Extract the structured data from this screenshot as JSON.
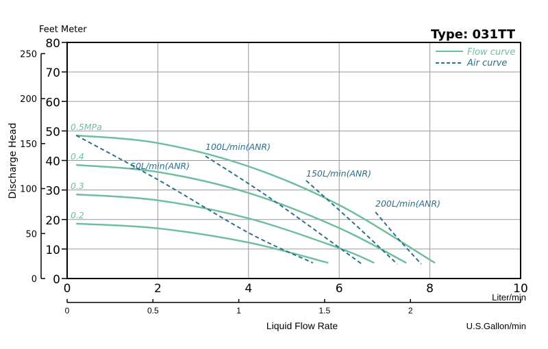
{
  "chart_data": {
    "type": "line",
    "title": "Type: 031TT",
    "ylabel": "Discharge Head",
    "y_units_label": "Feet Meter",
    "xlabel": "Liquid Flow Rate",
    "x_unit_primary": "Liter/min",
    "x_unit_secondary": "U.S.Gallon/min",
    "xlim": [
      0,
      10
    ],
    "ylim": [
      0,
      80
    ],
    "x_ticks": [
      "0",
      "2",
      "4",
      "6",
      "8",
      "10"
    ],
    "y_ticks": [
      "0",
      "10",
      "20",
      "30",
      "40",
      "50",
      "60",
      "70",
      "80"
    ],
    "feet_ticks": [
      "0",
      "50",
      "100",
      "150",
      "200",
      "250"
    ],
    "gallon_ticks": [
      "0",
      "0.5",
      "1",
      "1.5",
      "2"
    ],
    "grid": true,
    "legend": {
      "placement": "top-right",
      "entries": [
        {
          "label": "Flow curve",
          "style": "solid"
        },
        {
          "label": "Air curve",
          "style": "dashed"
        }
      ]
    },
    "colors": {
      "flow": "#6dbf9c",
      "air": "#2a6f8c"
    },
    "flow_series": [
      {
        "name": "0.5MPa",
        "x": [
          0.2,
          2,
          4,
          6,
          8.11
        ],
        "y": [
          48.5,
          45.9,
          38.0,
          24.9,
          5.3
        ]
      },
      {
        "name": "0.4",
        "x": [
          0.2,
          2,
          4,
          6,
          7.48
        ],
        "y": [
          38.5,
          36.1,
          29.0,
          17.1,
          5.3
        ]
      },
      {
        "name": "0.3",
        "x": [
          0.2,
          2,
          4,
          6,
          6.77
        ],
        "y": [
          28.5,
          26.5,
          20.4,
          10.3,
          5.3
        ]
      },
      {
        "name": "0.2",
        "x": [
          0.2,
          2,
          4,
          5.76
        ],
        "y": [
          18.6,
          17.0,
          12.2,
          5.3
        ]
      }
    ],
    "air_series": [
      {
        "name": "50L/min(ANR)",
        "x": [
          0.2,
          2,
          4,
          5.42
        ],
        "y": [
          48.5,
          33.5,
          15.5,
          5.3
        ]
      },
      {
        "name": "100L/min(ANR)",
        "x": [
          3.05,
          4.5,
          6.5
        ],
        "y": [
          41.5,
          27,
          4.9
        ]
      },
      {
        "name": "150L/min(ANR)",
        "x": [
          5.27,
          6.3,
          7.28
        ],
        "y": [
          33.2,
          19,
          4.9
        ]
      },
      {
        "name": "200L/min(ANR)",
        "x": [
          6.8,
          7.3,
          7.81
        ],
        "y": [
          22.5,
          13.5,
          4.9
        ]
      }
    ]
  }
}
